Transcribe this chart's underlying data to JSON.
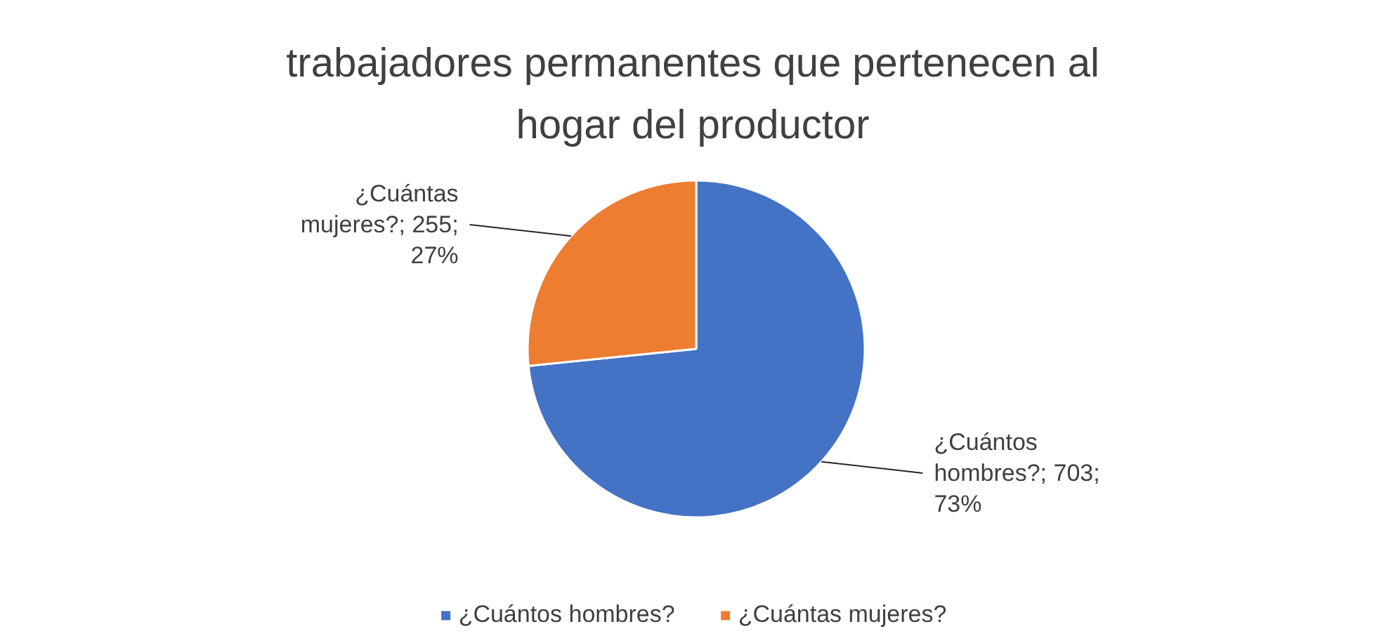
{
  "chart_data": {
    "type": "pie",
    "title": "trabajadores permanentes que pertenecen al hogar del productor",
    "categories": [
      "¿Cuántos hombres?",
      "¿Cuántas mujeres?"
    ],
    "values": [
      703,
      255
    ],
    "colors": [
      "#4472c4",
      "#ed7d31"
    ],
    "value_labels": [
      "¿Cuántos hombres?; 703; 73%",
      "¿Cuántas mujeres?; 255; 27%"
    ],
    "legend": "bottom"
  }
}
